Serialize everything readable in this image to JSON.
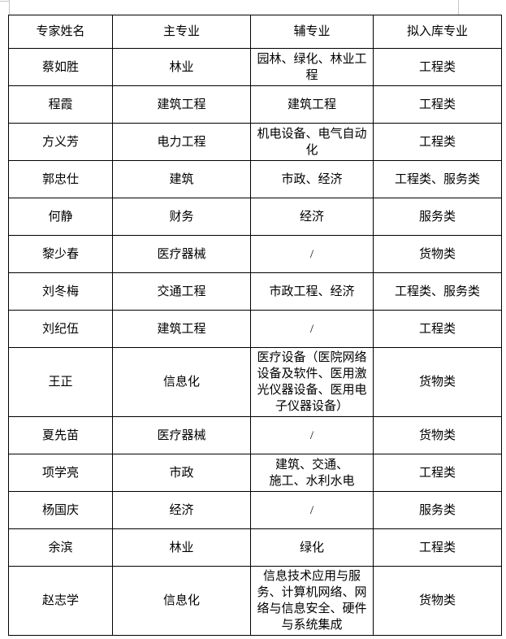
{
  "table": {
    "headers": [
      "专家姓名",
      "主专业",
      "辅专业",
      "拟入库专业"
    ],
    "rows": [
      {
        "name": "蔡如胜",
        "main": "林业",
        "aux": "园林、绿化、林业工程",
        "category": "工程类"
      },
      {
        "name": "程霞",
        "main": "建筑工程",
        "aux": "建筑工程",
        "category": "工程类"
      },
      {
        "name": "方义芳",
        "main": "电力工程",
        "aux": "机电设备、电气自动化",
        "category": "工程类"
      },
      {
        "name": "郭忠仕",
        "main": "建筑",
        "aux": "市政、经济",
        "category": "工程类、服务类"
      },
      {
        "name": "何静",
        "main": "财务",
        "aux": "经济",
        "category": "服务类"
      },
      {
        "name": "黎少春",
        "main": "医疗器械",
        "aux": "/",
        "category": "货物类"
      },
      {
        "name": "刘冬梅",
        "main": "交通工程",
        "aux": "市政工程、经济",
        "category": "工程类、服务类"
      },
      {
        "name": "刘纪伍",
        "main": "建筑工程",
        "aux": "/",
        "category": "工程类"
      },
      {
        "name": "王正",
        "main": "信息化",
        "aux": "医疗设备（医院网络设备及软件、医用激光仪器设备、医用电子仪器设备）",
        "category": "货物类"
      },
      {
        "name": "夏先苗",
        "main": "医疗器械",
        "aux": "/",
        "category": "货物类"
      },
      {
        "name": "项学亮",
        "main": "市政",
        "aux": "建筑、交通、\n施工、水利水电",
        "category": "工程类"
      },
      {
        "name": "杨国庆",
        "main": "经济",
        "aux": "/",
        "category": "服务类"
      },
      {
        "name": "余滨",
        "main": "林业",
        "aux": "绿化",
        "category": "工程类"
      },
      {
        "name": "赵志学",
        "main": "信息化",
        "aux": "信息技术应用与服务、计算机网络、网络与信息安全、硬件与系统集成",
        "category": "货物类"
      }
    ]
  }
}
